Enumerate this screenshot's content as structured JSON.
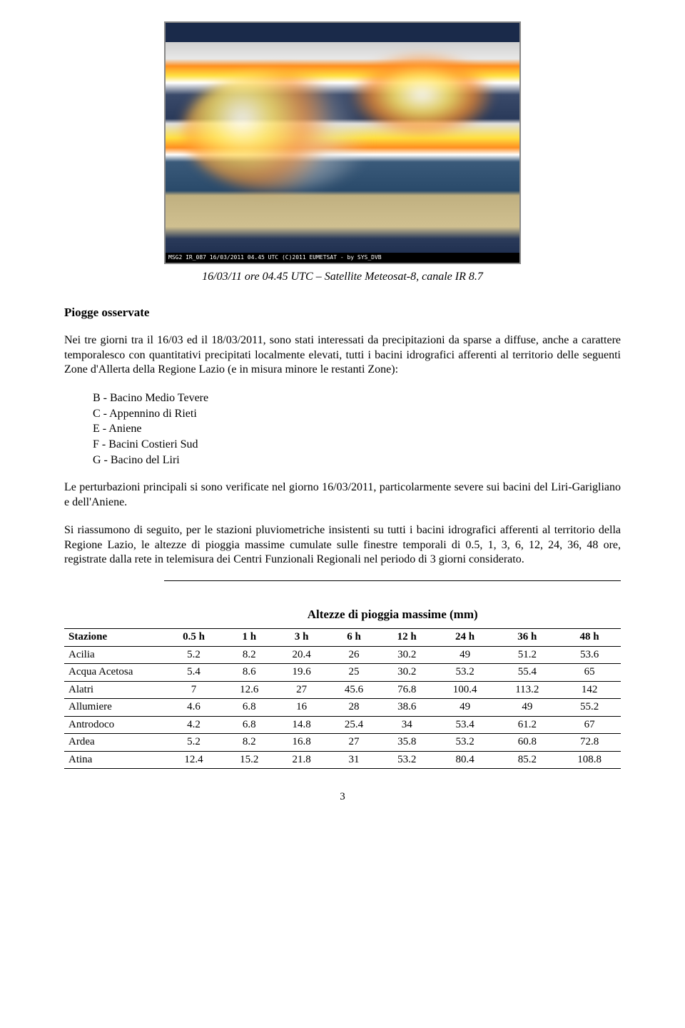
{
  "satellite": {
    "footer_text": "MSG2   IR_087   16/03/2011 04.45 UTC (C)2011 EUMETSAT - by SYS_DVB",
    "caption": "16/03/11 ore 04.45 UTC – Satellite Meteosat-8, canale IR 8.7"
  },
  "section_title": "Piogge osservate",
  "para1": "Nei tre giorni tra il 16/03 ed il 18/03/2011, sono stati interessati da precipitazioni da sparse a diffuse, anche a carattere temporalesco con quantitativi precipitati localmente elevati, tutti i bacini idrografici afferenti al territorio delle seguenti Zone d'Allerta della Regione Lazio (e in misura minore le restanti Zone):",
  "zones": [
    "B - Bacino Medio Tevere",
    "C - Appennino di Rieti",
    "E - Aniene",
    "F - Bacini Costieri Sud",
    "G - Bacino del Liri"
  ],
  "para2": "Le perturbazioni principali si sono verificate nel giorno 16/03/2011, particolarmente severe sui bacini del Liri-Garigliano e dell'Aniene.",
  "para3": "Si riassumono di seguito, per le stazioni pluviometriche insistenti su tutti i bacini idrografici afferenti al territorio della Regione Lazio, le altezze di pioggia massime cumulate sulle finestre temporali di 0.5, 1, 3, 6, 12, 24, 36, 48 ore, registrate dalla rete in telemisura dei Centri Funzionali Regionali nel periodo di 3 giorni considerato.",
  "table": {
    "title": "Altezze di pioggia massime (mm)",
    "row_header": "Stazione",
    "columns": [
      "0.5 h",
      "1 h",
      "3 h",
      "6 h",
      "12 h",
      "24 h",
      "36 h",
      "48 h"
    ],
    "rows": [
      {
        "station": "Acilia",
        "v": [
          "5.2",
          "8.2",
          "20.4",
          "26",
          "30.2",
          "49",
          "51.2",
          "53.6"
        ]
      },
      {
        "station": "Acqua Acetosa",
        "v": [
          "5.4",
          "8.6",
          "19.6",
          "25",
          "30.2",
          "53.2",
          "55.4",
          "65"
        ]
      },
      {
        "station": "Alatri",
        "v": [
          "7",
          "12.6",
          "27",
          "45.6",
          "76.8",
          "100.4",
          "113.2",
          "142"
        ]
      },
      {
        "station": "Allumiere",
        "v": [
          "4.6",
          "6.8",
          "16",
          "28",
          "38.6",
          "49",
          "49",
          "55.2"
        ]
      },
      {
        "station": "Antrodoco",
        "v": [
          "4.2",
          "6.8",
          "14.8",
          "25.4",
          "34",
          "53.4",
          "61.2",
          "67"
        ]
      },
      {
        "station": "Ardea",
        "v": [
          "5.2",
          "8.2",
          "16.8",
          "27",
          "35.8",
          "53.2",
          "60.8",
          "72.8"
        ]
      },
      {
        "station": "Atina",
        "v": [
          "12.4",
          "15.2",
          "21.8",
          "31",
          "53.2",
          "80.4",
          "85.2",
          "108.8"
        ]
      }
    ],
    "header_bg": "#ffffff",
    "border_color": "#000000",
    "font_size_pt": 11
  },
  "page_number": "3",
  "colors": {
    "text": "#000000",
    "background": "#ffffff"
  }
}
